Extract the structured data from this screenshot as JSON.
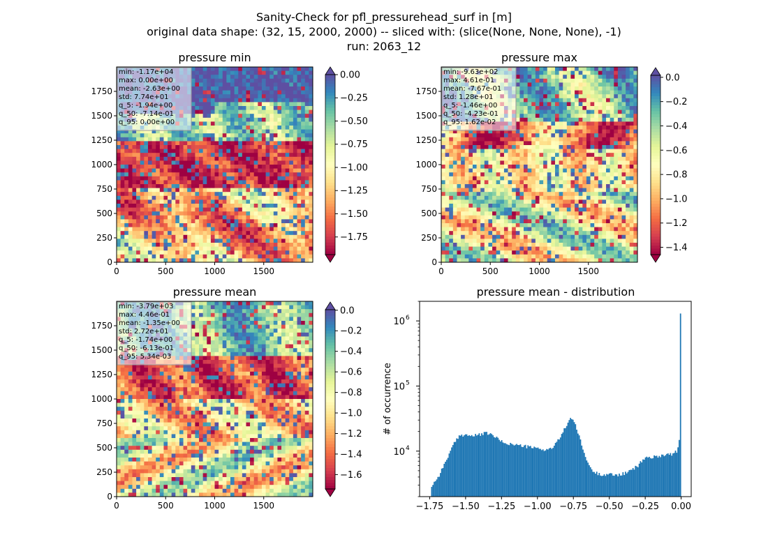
{
  "suptitle": {
    "line1": "Sanity-Check for pfl_pressurehead_surf in [m]",
    "line2": "original data shape: (32, 15, 2000, 2000) -- sliced with: (slice(None, None, None), -1)",
    "line3": "run: 2063_12"
  },
  "colors": {
    "spectral": [
      "#9e0142",
      "#d53e4f",
      "#f46d43",
      "#fdae61",
      "#fee08b",
      "#ffffbf",
      "#e6f598",
      "#abdda4",
      "#66c2a5",
      "#3288bd",
      "#5e4fa2"
    ],
    "hist_bar": "#1f77b4"
  },
  "chart_data": [
    {
      "type": "heatmap",
      "title": "pressure min",
      "xticks": [
        "0",
        "500",
        "1000",
        "1500"
      ],
      "yticks": [
        "0",
        "250",
        "500",
        "750",
        "1000",
        "1250",
        "1500",
        "1750"
      ],
      "xlim": [
        0,
        2000
      ],
      "ylim": [
        0,
        2000
      ],
      "stats": [
        "min: -1.17e+04",
        "max: 0.00e+00",
        "mean: -2.63e+00",
        "std: 7.74e+01",
        "q_5: -1.94e+00",
        "q_50: -7.14e-01",
        "q_95: 0.00e+00"
      ],
      "colorbar": {
        "range": [
          -1.94,
          0.0
        ],
        "ticks": [
          0.0,
          -0.25,
          -0.5,
          -0.75,
          -1.0,
          -1.25,
          -1.5,
          -1.75
        ],
        "tick_labels": [
          "0.00",
          "−0.25",
          "−0.50",
          "−0.75",
          "−1.00",
          "−1.25",
          "−1.50",
          "−1.75"
        ],
        "extend": "both"
      }
    },
    {
      "type": "heatmap",
      "title": "pressure max",
      "xticks": [
        "0",
        "500",
        "1000",
        "1500"
      ],
      "yticks": [
        "0",
        "250",
        "500",
        "750",
        "1000",
        "1250",
        "1500",
        "1750"
      ],
      "xlim": [
        0,
        2000
      ],
      "ylim": [
        0,
        2000
      ],
      "stats": [
        "min: -9.63e+02",
        "max: 4.61e-01",
        "mean: -7.67e-01",
        "std: 1.28e+01",
        "q_5: -1.46e+00",
        "q_50: -4.23e-01",
        "q_95: 1.62e-02"
      ],
      "colorbar": {
        "range": [
          -1.46,
          0.0162
        ],
        "ticks": [
          0.0,
          -0.2,
          -0.4,
          -0.6,
          -0.8,
          -1.0,
          -1.2,
          -1.4
        ],
        "tick_labels": [
          "0.0",
          "−0.2",
          "−0.4",
          "−0.6",
          "−0.8",
          "−1.0",
          "−1.2",
          "−1.4"
        ],
        "extend": "both"
      }
    },
    {
      "type": "heatmap",
      "title": "pressure mean",
      "xticks": [
        "0",
        "500",
        "1000",
        "1500"
      ],
      "yticks": [
        "0",
        "250",
        "500",
        "750",
        "1000",
        "1250",
        "1500",
        "1750"
      ],
      "xlim": [
        0,
        2000
      ],
      "ylim": [
        0,
        2000
      ],
      "stats": [
        "min: -3.79e+03",
        "max: 4.46e-01",
        "mean: -1.35e+00",
        "std: 2.72e+01",
        "q_5: -1.74e+00",
        "q_50: -6.13e-01",
        "q_95: 5.34e-03"
      ],
      "colorbar": {
        "range": [
          -1.74,
          0.00534
        ],
        "ticks": [
          0.0,
          -0.2,
          -0.4,
          -0.6,
          -0.8,
          -1.0,
          -1.2,
          -1.4,
          -1.6
        ],
        "tick_labels": [
          "0.0",
          "−0.2",
          "−0.4",
          "−0.6",
          "−0.8",
          "−1.0",
          "−1.2",
          "−1.4",
          "−1.6"
        ],
        "extend": "both"
      }
    },
    {
      "type": "bar",
      "title": "pressure mean - distribution",
      "ylabel": "# of occurrence",
      "xlabel": "",
      "yscale": "log",
      "xlim": [
        -1.82,
        0.07
      ],
      "ylim": [
        2000,
        2000000
      ],
      "xticks": [
        -1.75,
        -1.5,
        -1.25,
        -1.0,
        -0.75,
        -0.5,
        -0.25,
        0.0
      ],
      "xtick_labels": [
        "−1.75",
        "−1.50",
        "−1.25",
        "−1.00",
        "−0.75",
        "−0.50",
        "−0.25",
        "0.00"
      ],
      "yticks": [
        10000,
        100000,
        1000000
      ],
      "ytick_exponents": [
        "4",
        "5",
        "6"
      ],
      "ytick_base": "10",
      "bin_range": [
        -1.74,
        0.0
      ],
      "profile": [
        [
          -1.74,
          2800
        ],
        [
          -1.72,
          3300
        ],
        [
          -1.69,
          4000
        ],
        [
          -1.66,
          5500
        ],
        [
          -1.62,
          8500
        ],
        [
          -1.58,
          13000
        ],
        [
          -1.54,
          17500
        ],
        [
          -1.5,
          18000
        ],
        [
          -1.45,
          17000
        ],
        [
          -1.4,
          18000
        ],
        [
          -1.35,
          19000
        ],
        [
          -1.3,
          17000
        ],
        [
          -1.25,
          14000
        ],
        [
          -1.2,
          13000
        ],
        [
          -1.15,
          12500
        ],
        [
          -1.1,
          12000
        ],
        [
          -1.05,
          11500
        ],
        [
          -1.0,
          11000
        ],
        [
          -0.95,
          10500
        ],
        [
          -0.9,
          11000
        ],
        [
          -0.86,
          14000
        ],
        [
          -0.82,
          20000
        ],
        [
          -0.79,
          27000
        ],
        [
          -0.77,
          33000
        ],
        [
          -0.75,
          30000
        ],
        [
          -0.72,
          20000
        ],
        [
          -0.69,
          12000
        ],
        [
          -0.66,
          7500
        ],
        [
          -0.62,
          5000
        ],
        [
          -0.58,
          4500
        ],
        [
          -0.55,
          4400
        ],
        [
          -0.5,
          4400
        ],
        [
          -0.45,
          4300
        ],
        [
          -0.4,
          4500
        ],
        [
          -0.35,
          5000
        ],
        [
          -0.3,
          6000
        ],
        [
          -0.25,
          8000
        ],
        [
          -0.2,
          8000
        ],
        [
          -0.15,
          8500
        ],
        [
          -0.1,
          9000
        ],
        [
          -0.06,
          9000
        ],
        [
          -0.03,
          10000
        ],
        [
          -0.015,
          12000
        ],
        [
          -0.007,
          25000
        ],
        [
          0.0,
          1300000
        ]
      ]
    }
  ]
}
